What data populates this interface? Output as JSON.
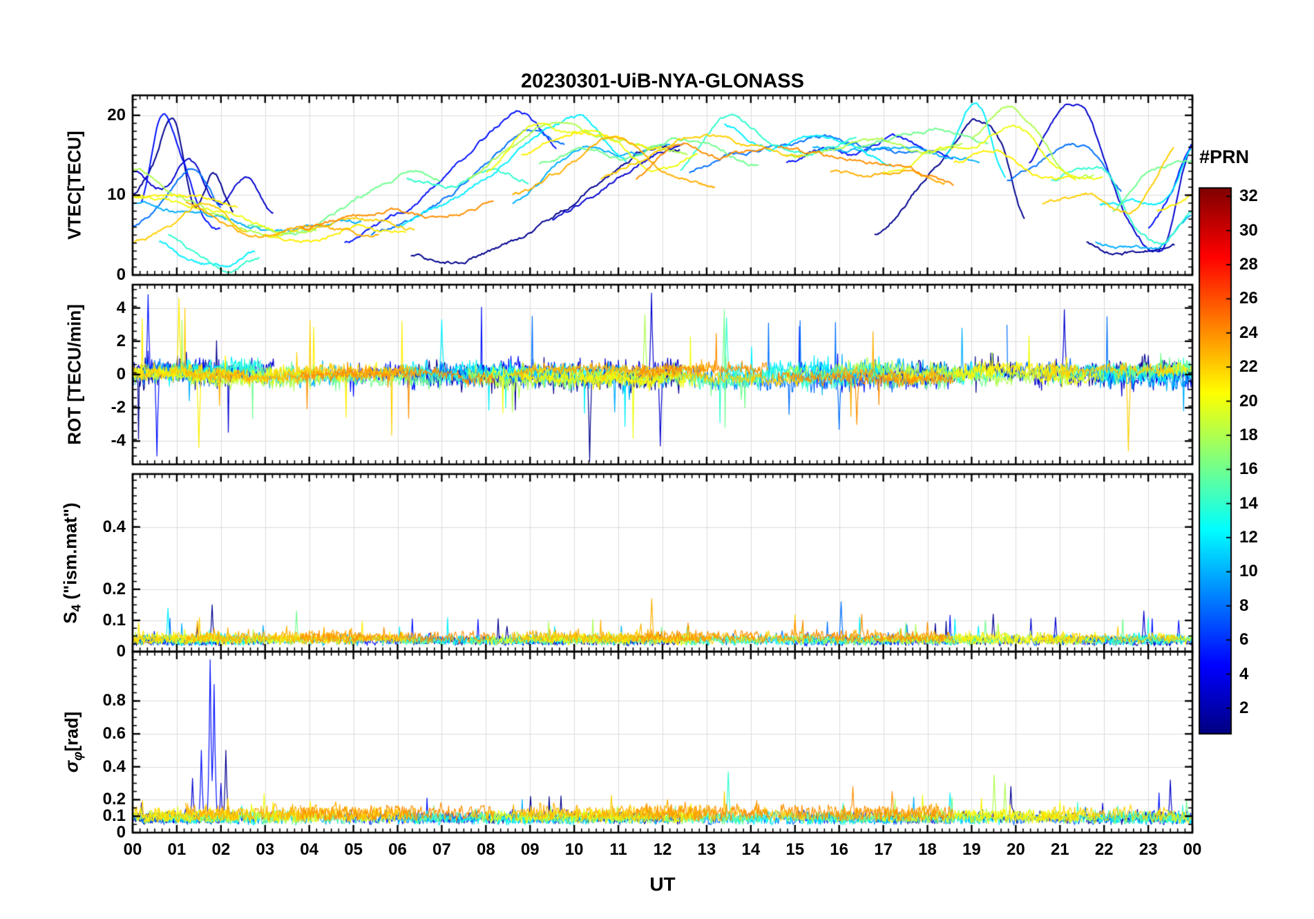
{
  "chart_data": {
    "type": "line",
    "title": "20230301-UiB-NYA-GLONASS",
    "xlabel": "UT",
    "x_range_hours": [
      0,
      24
    ],
    "x_ticks": [
      "00",
      "01",
      "02",
      "03",
      "04",
      "05",
      "06",
      "07",
      "08",
      "09",
      "10",
      "11",
      "12",
      "13",
      "14",
      "15",
      "16",
      "17",
      "18",
      "19",
      "20",
      "21",
      "22",
      "23",
      "00"
    ],
    "grid": true,
    "colorbar": {
      "label": "#PRN",
      "colormap": "jet",
      "range": [
        1,
        32
      ],
      "ticks": [
        2,
        4,
        6,
        8,
        10,
        12,
        14,
        16,
        18,
        20,
        22,
        24,
        26,
        28,
        30,
        32
      ]
    },
    "panels": [
      {
        "id": "vtec",
        "ylabel": "VTEC[TECU]",
        "ylim": [
          0,
          22.5
        ],
        "yticks": [
          "0",
          "10",
          "20"
        ],
        "ytick_values": [
          0,
          10,
          20
        ]
      },
      {
        "id": "rot",
        "ylabel": "ROT [TECU/min]",
        "ylim": [
          -5.4,
          5.4
        ],
        "yticks": [
          "-4",
          "-2",
          "0",
          "2",
          "4"
        ],
        "ytick_values": [
          -4,
          -2,
          0,
          2,
          4
        ]
      },
      {
        "id": "s4",
        "ylabel_base": "S",
        "ylabel_sub": "4",
        "ylabel_rest": " (\"ism.mat\")",
        "ylim": [
          0,
          0.57
        ],
        "yticks": [
          "0",
          "0.1",
          "0.2",
          "0.4"
        ],
        "ytick_values": [
          0,
          0.1,
          0.2,
          0.4
        ]
      },
      {
        "id": "sigma_phi",
        "ylabel_base": "σ",
        "ylabel_sub": "φ",
        "ylabel_rest": "[rad]",
        "ylim": [
          0,
          1.1
        ],
        "yticks": [
          "0",
          "0.1",
          "0.2",
          "0.4",
          "0.6",
          "0.8"
        ],
        "ytick_values": [
          0,
          0.1,
          0.2,
          0.4,
          0.6,
          0.8
        ]
      }
    ],
    "series": [
      {
        "prn": 1,
        "rot_amp": 1.1,
        "rot_spike": 4.6,
        "s4_base": 0.028,
        "sigma_base": 0.08,
        "vtec_arcs": [
          {
            "t0": 0.0,
            "t1": 2.3,
            "v": [
              10,
              14,
              20,
              9,
              13,
              8
            ]
          },
          {
            "t0": 6.3,
            "t1": 12.4,
            "v": [
              2.5,
              2,
              3,
              5,
              8,
              12,
              15.5,
              16
            ]
          },
          {
            "t0": 16.8,
            "t1": 20.2,
            "v": [
              5,
              8,
              12,
              15,
              19,
              17,
              7
            ]
          },
          {
            "t0": 21.6,
            "t1": 23.6,
            "v": [
              4,
              3,
              3,
              3.5,
              4
            ]
          }
        ]
      },
      {
        "prn": 3,
        "rot_amp": 1.05,
        "rot_spike": 4.8,
        "s4_base": 0.028,
        "sigma_base": 0.08,
        "vtec_arcs": [
          {
            "t0": 0.0,
            "t1": 3.2,
            "v": [
              13,
              11,
              14,
              9,
              12,
              7
            ]
          },
          {
            "t0": 9.5,
            "t1": 12.5,
            "v": [
              7,
              9,
              12,
              15,
              16
            ]
          },
          {
            "t0": 20.3,
            "t1": 24.0,
            "v": [
              14,
              20,
              21,
              12,
              5,
              3.5,
              16
            ]
          }
        ]
      },
      {
        "prn": 5,
        "rot_amp": 0.95,
        "rot_spike": 4.8,
        "s4_base": 0.028,
        "sigma_base": 0.08,
        "vtec_arcs": [
          {
            "t0": 0.2,
            "t1": 2.0,
            "v": [
              9,
              20,
              15,
              8,
              6
            ]
          },
          {
            "t0": 4.8,
            "t1": 9.6,
            "v": [
              4,
              6,
              9,
              13,
              17,
              20.5,
              16
            ]
          },
          {
            "t0": 14.8,
            "t1": 18.6,
            "v": [
              14,
              16,
              15,
              17,
              16,
              15
            ]
          },
          {
            "t0": 23.0,
            "t1": 24.0,
            "v": [
              6,
              10,
              17
            ]
          }
        ]
      },
      {
        "prn": 8,
        "rot_amp": 0.9,
        "rot_spike": 3.6,
        "s4_base": 0.03,
        "sigma_base": 0.075,
        "vtec_arcs": [
          {
            "t0": 0.0,
            "t1": 2.0,
            "v": [
              6,
              9,
              13,
              8
            ]
          },
          {
            "t0": 5.4,
            "t1": 9.8,
            "v": [
              5,
              7,
              10,
              14,
              18,
              16
            ]
          },
          {
            "t0": 12.6,
            "t1": 17.8,
            "v": [
              13,
              15,
              16,
              17,
              16,
              15.5
            ]
          },
          {
            "t0": 19.8,
            "t1": 22.4,
            "v": [
              12,
              14,
              16,
              15,
              10
            ]
          }
        ]
      },
      {
        "prn": 10,
        "rot_amp": 0.85,
        "rot_spike": 3.2,
        "s4_base": 0.03,
        "sigma_base": 0.075,
        "vtec_arcs": [
          {
            "t0": 0.0,
            "t1": 5.2,
            "v": [
              9,
              8,
              7,
              5.5,
              6,
              6.5
            ]
          },
          {
            "t0": 8.6,
            "t1": 12.2,
            "v": [
              9,
              13,
              16,
              15,
              16
            ]
          },
          {
            "t0": 15.4,
            "t1": 19.2,
            "v": [
              16,
              15.5,
              16,
              15,
              14
            ]
          },
          {
            "t0": 21.8,
            "t1": 24.0,
            "v": [
              4,
              3.5,
              4,
              8
            ]
          }
        ]
      },
      {
        "prn": 12,
        "rot_amp": 0.8,
        "rot_spike": 3.4,
        "s4_base": 0.03,
        "sigma_base": 0.075,
        "vtec_arcs": [
          {
            "t0": 0.6,
            "t1": 2.8,
            "v": [
              4,
              1.5,
              1,
              3
            ]
          },
          {
            "t0": 6.0,
            "t1": 11.2,
            "v": [
              6,
              9,
              13,
              17,
              19.5,
              14
            ]
          },
          {
            "t0": 13.4,
            "t1": 17.2,
            "v": [
              19,
              16,
              17,
              16,
              14
            ]
          },
          {
            "t0": 18.4,
            "t1": 19.8,
            "v": [
              15,
              22,
              12
            ]
          },
          {
            "t0": 21.9,
            "t1": 24.0,
            "v": [
              9,
              9.5,
              9,
              10,
              16
            ]
          }
        ]
      },
      {
        "prn": 14,
        "rot_amp": 0.8,
        "rot_spike": 3.4,
        "s4_base": 0.03,
        "sigma_base": 0.08,
        "vtec_arcs": [
          {
            "t0": 0.8,
            "t1": 2.9,
            "v": [
              5,
              2,
              1,
              2.5
            ]
          },
          {
            "t0": 6.2,
            "t1": 9.0,
            "v": [
              12,
              11,
              13,
              12
            ]
          },
          {
            "t0": 12.4,
            "t1": 16.4,
            "v": [
              13,
              20,
              17,
              15,
              17
            ]
          },
          {
            "t0": 20.8,
            "t1": 24.0,
            "v": [
              12,
              14,
              13,
              6,
              4,
              8
            ]
          }
        ]
      },
      {
        "prn": 16,
        "rot_amp": 0.78,
        "rot_spike": 3.6,
        "s4_base": 0.03,
        "sigma_base": 0.08,
        "vtec_arcs": [
          {
            "t0": 2.6,
            "t1": 7.0,
            "v": [
              6,
              5,
              7,
              10,
              13,
              12
            ]
          },
          {
            "t0": 9.2,
            "t1": 14.2,
            "v": [
              14,
              16,
              15,
              17,
              16,
              14
            ]
          },
          {
            "t0": 16.4,
            "t1": 19.4,
            "v": [
              16,
              17,
              18,
              16
            ]
          },
          {
            "t0": 22.2,
            "t1": 24.0,
            "v": [
              8,
              13,
              14
            ]
          }
        ]
      },
      {
        "prn": 18,
        "rot_amp": 0.72,
        "rot_spike": 3.8,
        "s4_base": 0.032,
        "sigma_base": 0.085,
        "vtec_arcs": [
          {
            "t0": 0.0,
            "t1": 4.2,
            "v": [
              13,
              10,
              7,
              5,
              6
            ]
          },
          {
            "t0": 7.6,
            "t1": 12.6,
            "v": [
              12,
              16,
              19,
              17,
              16,
              15
            ]
          },
          {
            "t0": 14.8,
            "t1": 18.8,
            "v": [
              15,
              16,
              17,
              15,
              16
            ]
          },
          {
            "t0": 19.0,
            "t1": 21.8,
            "v": [
              17,
              21.5,
              19,
              13,
              12
            ]
          }
        ]
      },
      {
        "prn": 20,
        "rot_amp": 0.68,
        "rot_spike": 4.0,
        "s4_base": 0.033,
        "sigma_base": 0.09,
        "vtec_arcs": [
          {
            "t0": 0.0,
            "t1": 3.4,
            "v": [
              10,
              9,
              8,
              5
            ]
          },
          {
            "t0": 8.0,
            "t1": 12.8,
            "v": [
              13,
              18.5,
              17.5,
              17,
              13,
              15
            ]
          },
          {
            "t0": 17.0,
            "t1": 22.0,
            "v": [
              13,
              15,
              16,
              18.5,
              13,
              12
            ]
          }
        ]
      },
      {
        "prn": 21,
        "rot_amp": 0.6,
        "rot_spike": 4.6,
        "s4_base": 0.035,
        "sigma_base": 0.09,
        "vtec_arcs": [
          {
            "t0": 0.0,
            "t1": 2.4,
            "v": [
              10,
              10,
              9.5,
              9
            ]
          },
          {
            "t0": 3.0,
            "t1": 6.2,
            "v": [
              5,
              4,
              6,
              5.5
            ]
          },
          {
            "t0": 8.8,
            "t1": 12.0,
            "v": [
              15,
              18,
              17,
              16
            ]
          },
          {
            "t0": 18.6,
            "t1": 21.4,
            "v": [
              14,
              16,
              13,
              12
            ]
          },
          {
            "t0": 23.2,
            "t1": 24.0,
            "v": [
              8,
              10
            ]
          }
        ]
      },
      {
        "prn": 22,
        "rot_amp": 0.55,
        "rot_spike": 4.6,
        "s4_base": 0.035,
        "sigma_base": 0.1,
        "vtec_arcs": [
          {
            "t0": 0.0,
            "t1": 2.6,
            "v": [
              4,
              6,
              9,
              5
            ]
          },
          {
            "t0": 3.2,
            "t1": 6.4,
            "v": [
              5,
              6,
              7,
              6
            ]
          },
          {
            "t0": 10.6,
            "t1": 15.2,
            "v": [
              12,
              15,
              17,
              16,
              15
            ]
          },
          {
            "t0": 20.6,
            "t1": 23.6,
            "v": [
              9,
              10,
              8,
              16
            ]
          }
        ]
      },
      {
        "prn": 23,
        "rot_amp": 0.5,
        "rot_spike": 3.0,
        "s4_base": 0.04,
        "sigma_base": 0.11,
        "vtec_arcs": [
          {
            "t0": 1.2,
            "t1": 5.6,
            "v": [
              9,
              6,
              5,
              7,
              6,
              5
            ]
          },
          {
            "t0": 8.6,
            "t1": 13.2,
            "v": [
              10,
              13,
              17,
              13,
              11
            ]
          },
          {
            "t0": 15.8,
            "t1": 18.4,
            "v": [
              13,
              12.5,
              13,
              12
            ]
          }
        ]
      },
      {
        "prn": 24,
        "rot_amp": 0.5,
        "rot_spike": 3.0,
        "s4_base": 0.04,
        "sigma_base": 0.11,
        "vtec_arcs": [
          {
            "t0": 3.8,
            "t1": 8.2,
            "v": [
              6,
              7,
              8,
              7,
              9
            ]
          },
          {
            "t0": 11.4,
            "t1": 14.4,
            "v": [
              12,
              16,
              15,
              16
            ]
          },
          {
            "t0": 14.6,
            "t1": 18.6,
            "v": [
              16,
              15,
              14,
              13,
              11
            ]
          }
        ]
      }
    ],
    "events": {
      "rot": [
        {
          "prn": 1,
          "t": 10.35,
          "v": -5.2
        },
        {
          "prn": 3,
          "t": 11.75,
          "v": 4.9
        },
        {
          "prn": 3,
          "t": 11.95,
          "v": -4.3
        },
        {
          "prn": 21,
          "t": 1.05,
          "v": 4.6
        },
        {
          "prn": 21,
          "t": 1.5,
          "v": -4.4
        },
        {
          "prn": 22,
          "t": 22.55,
          "v": -4.6
        },
        {
          "prn": 5,
          "t": 0.35,
          "v": 4.8
        },
        {
          "prn": 5,
          "t": 0.55,
          "v": -4.9
        },
        {
          "prn": 16,
          "t": 13.4,
          "v": 3.9
        },
        {
          "prn": 8,
          "t": 16.0,
          "v": -3.3
        },
        {
          "prn": 3,
          "t": 21.1,
          "v": 3.9
        },
        {
          "prn": 24,
          "t": 16.4,
          "v": -3.0
        },
        {
          "prn": 12,
          "t": 7.0,
          "v": 3.3
        },
        {
          "prn": 18,
          "t": 11.6,
          "v": 3.6
        },
        {
          "prn": 14,
          "t": 13.45,
          "v": 3.4
        }
      ],
      "s4": [
        {
          "prn": 1,
          "t": 1.8,
          "v": 0.15
        },
        {
          "prn": 12,
          "t": 0.8,
          "v": 0.14
        },
        {
          "prn": 23,
          "t": 11.75,
          "v": 0.17
        },
        {
          "prn": 8,
          "t": 16.05,
          "v": 0.16
        },
        {
          "prn": 24,
          "t": 15.0,
          "v": 0.1
        },
        {
          "prn": 1,
          "t": 19.5,
          "v": 0.12
        },
        {
          "prn": 3,
          "t": 20.9,
          "v": 0.11
        },
        {
          "prn": 3,
          "t": 22.9,
          "v": 0.13
        },
        {
          "prn": 16,
          "t": 3.7,
          "v": 0.13
        },
        {
          "prn": 16,
          "t": 19.3,
          "v": 0.1
        },
        {
          "prn": 5,
          "t": 23.7,
          "v": 0.1
        },
        {
          "prn": 18,
          "t": 19.6,
          "v": 0.09
        },
        {
          "prn": 24,
          "t": 16.5,
          "v": 0.12
        }
      ],
      "sigma": [
        {
          "prn": 5,
          "t": 1.75,
          "v": 1.05
        },
        {
          "prn": 5,
          "t": 1.85,
          "v": 0.9
        },
        {
          "prn": 5,
          "t": 1.55,
          "v": 0.5
        },
        {
          "prn": 3,
          "t": 1.35,
          "v": 0.33
        },
        {
          "prn": 1,
          "t": 2.1,
          "v": 0.5
        },
        {
          "prn": 14,
          "t": 13.5,
          "v": 0.37
        },
        {
          "prn": 18,
          "t": 19.5,
          "v": 0.35
        },
        {
          "prn": 18,
          "t": 19.75,
          "v": 0.3
        },
        {
          "prn": 1,
          "t": 19.9,
          "v": 0.28
        },
        {
          "prn": 24,
          "t": 16.3,
          "v": 0.28
        },
        {
          "prn": 24,
          "t": 17.2,
          "v": 0.25
        },
        {
          "prn": 3,
          "t": 23.5,
          "v": 0.32
        },
        {
          "prn": 12,
          "t": 18.5,
          "v": 0.24
        },
        {
          "prn": 3,
          "t": 2.0,
          "v": 0.3
        },
        {
          "prn": 8,
          "t": 12.0,
          "v": 0.25
        },
        {
          "prn": 1,
          "t": 9.0,
          "v": 0.22
        }
      ]
    }
  }
}
